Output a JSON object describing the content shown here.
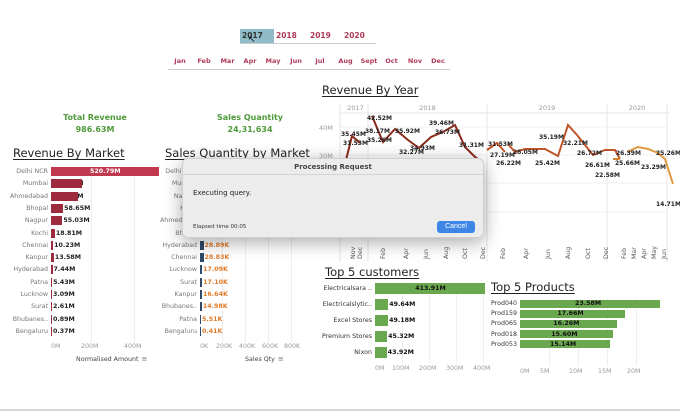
{
  "filters": {
    "years": [
      {
        "label": "2017",
        "selected": true
      },
      {
        "label": "2018",
        "selected": false
      },
      {
        "label": "2019",
        "selected": false
      },
      {
        "label": "2020",
        "selected": false
      }
    ],
    "months": [
      "Jan",
      "Feb",
      "Mar",
      "Apr",
      "May",
      "Jun",
      "Jul",
      "Aug",
      "Sept",
      "Oct",
      "Nov",
      "Dec"
    ]
  },
  "kpis": {
    "total_revenue": {
      "label": "Total Revenue",
      "value": "986.63M"
    },
    "sales_quantity": {
      "label": "Sales Quantity",
      "value": "24,31,634"
    }
  },
  "revenue_by_market": {
    "title": "Revenue By Market",
    "axis_label": "Normalised Amount",
    "ticks": [
      "0M",
      "200M",
      "400M"
    ],
    "rows": [
      {
        "label": "Delhi NCR",
        "value": "520.79M",
        "v": 520.79
      },
      {
        "label": "Mumbai",
        "value": "150.18M",
        "v": 150.18
      },
      {
        "label": "Ahmedabad",
        "value": "132.53M",
        "v": 132.53
      },
      {
        "label": "Bhopal",
        "value": "58.65M",
        "v": 58.65
      },
      {
        "label": "Nagpur",
        "value": "55.03M",
        "v": 55.03
      },
      {
        "label": "Kochi",
        "value": "18.81M",
        "v": 18.81
      },
      {
        "label": "Chennai",
        "value": "10.23M",
        "v": 10.23
      },
      {
        "label": "Kanpur",
        "value": "13.58M",
        "v": 13.58
      },
      {
        "label": "Hyderabad",
        "value": "7.44M",
        "v": 7.44
      },
      {
        "label": "Patna",
        "value": "5.43M",
        "v": 5.43
      },
      {
        "label": "Lucknow",
        "value": "3.09M",
        "v": 3.09
      },
      {
        "label": "Surat",
        "value": "2.61M",
        "v": 2.61
      },
      {
        "label": "Bhubanes..",
        "value": "0.89M",
        "v": 0.89
      },
      {
        "label": "Bengaluru",
        "value": "0.37M",
        "v": 0.37
      }
    ]
  },
  "sales_qty_by_market": {
    "title": "Sales Quantity by Market",
    "axis_label": "Sales Qty",
    "ticks": [
      "0K",
      "200K",
      "400K",
      "600K",
      "800K"
    ],
    "rows": [
      {
        "label": "Delhi NCR",
        "value": "",
        "v": 0
      },
      {
        "label": "Mumbai",
        "value": "",
        "v": 0
      },
      {
        "label": "Nagpur",
        "value": "",
        "v": 0
      },
      {
        "label": "Kochi",
        "value": "",
        "v": 0
      },
      {
        "label": "Ahmedabad",
        "value": "",
        "v": 0
      },
      {
        "label": "Bhopal",
        "value": "",
        "v": 0
      },
      {
        "label": "Hyderabad",
        "value": "28.89K",
        "v": 28.89
      },
      {
        "label": "Chennai",
        "value": "28.83K",
        "v": 28.83
      },
      {
        "label": "Lucknow",
        "value": "17.09K",
        "v": 17.09
      },
      {
        "label": "Surat",
        "value": "17.10K",
        "v": 17.1
      },
      {
        "label": "Kanpur",
        "value": "16.64K",
        "v": 16.64
      },
      {
        "label": "Bhubanes..",
        "value": "14.98K",
        "v": 14.98
      },
      {
        "label": "Patna",
        "value": "5.51K",
        "v": 5.51
      },
      {
        "label": "Bengaluru",
        "value": "0.41K",
        "v": 0.41
      }
    ]
  },
  "revenue_by_year": {
    "title": "Revenue By Year",
    "year_headers": [
      "2017",
      "2018",
      "2019",
      "2020"
    ],
    "y_ticks": [
      "40M",
      "30M"
    ],
    "labels": [
      "35.45M",
      "31.53M",
      "42.52M",
      "38.17M",
      "35.26M",
      "32.27M",
      "35.92M",
      "34.93M",
      "39.46M",
      "36.73M",
      "31.31M",
      "31.53M",
      "27.19M",
      "26.22M",
      "28.05M",
      "25.42M",
      "35.19M",
      "32.21M",
      "26.72M",
      "26.61M",
      "22.58M",
      "26.39M",
      "25.66M",
      "23.29M",
      "25.26M",
      "14.71M"
    ],
    "month_ticks": [
      "Nov",
      "Dec",
      "Feb",
      "Apr",
      "Jun",
      "Aug",
      "Oct",
      "Dec",
      "Feb",
      "Apr",
      "Jun",
      "Aug",
      "Oct",
      "Dec",
      "Feb",
      "Mar",
      "Apr",
      "May",
      "Jun"
    ]
  },
  "top_customers": {
    "title": "Top 5 customers",
    "ticks": [
      "0M",
      "100M",
      "200M",
      "300M",
      "400M"
    ],
    "rows": [
      {
        "label": "Electricalsara ..",
        "value": "413.91M",
        "v": 413.91
      },
      {
        "label": "Electricalslytic..",
        "value": "49.64M",
        "v": 49.64
      },
      {
        "label": "Excel Stores",
        "value": "49.18M",
        "v": 49.18
      },
      {
        "label": "Premium Stores",
        "value": "45.32M",
        "v": 45.32
      },
      {
        "label": "Nixon",
        "value": "43.92M",
        "v": 43.92
      }
    ]
  },
  "top_products": {
    "title": "Top 5 Products",
    "ticks": [
      "0M",
      "5M",
      "10M",
      "15M",
      "20M"
    ],
    "rows": [
      {
        "label": "Prod040",
        "value": "23.58M",
        "v": 23.58
      },
      {
        "label": "Prod159",
        "value": "17.66M",
        "v": 17.66
      },
      {
        "label": "Prod065",
        "value": "16.26M",
        "v": 16.26
      },
      {
        "label": "Prod018",
        "value": "15.60M",
        "v": 15.6
      },
      {
        "label": "Prod053",
        "value": "15.14M",
        "v": 15.14
      }
    ]
  },
  "dialog": {
    "title": "Processing Request",
    "message": "Executing query.",
    "elapsed": "Elapsed time 00:05",
    "cancel_label": "Cancel"
  },
  "colors": {
    "revenue_bar": "#c0394f",
    "qty_value": "#e07b2a",
    "green_bar": "#6aa84f",
    "line": "#b8451f",
    "kpi": "#4e9a3a",
    "filter_text": "#b03a5a",
    "filter_selected": "#8fbcc7",
    "cancel": "#3d86e6"
  }
}
